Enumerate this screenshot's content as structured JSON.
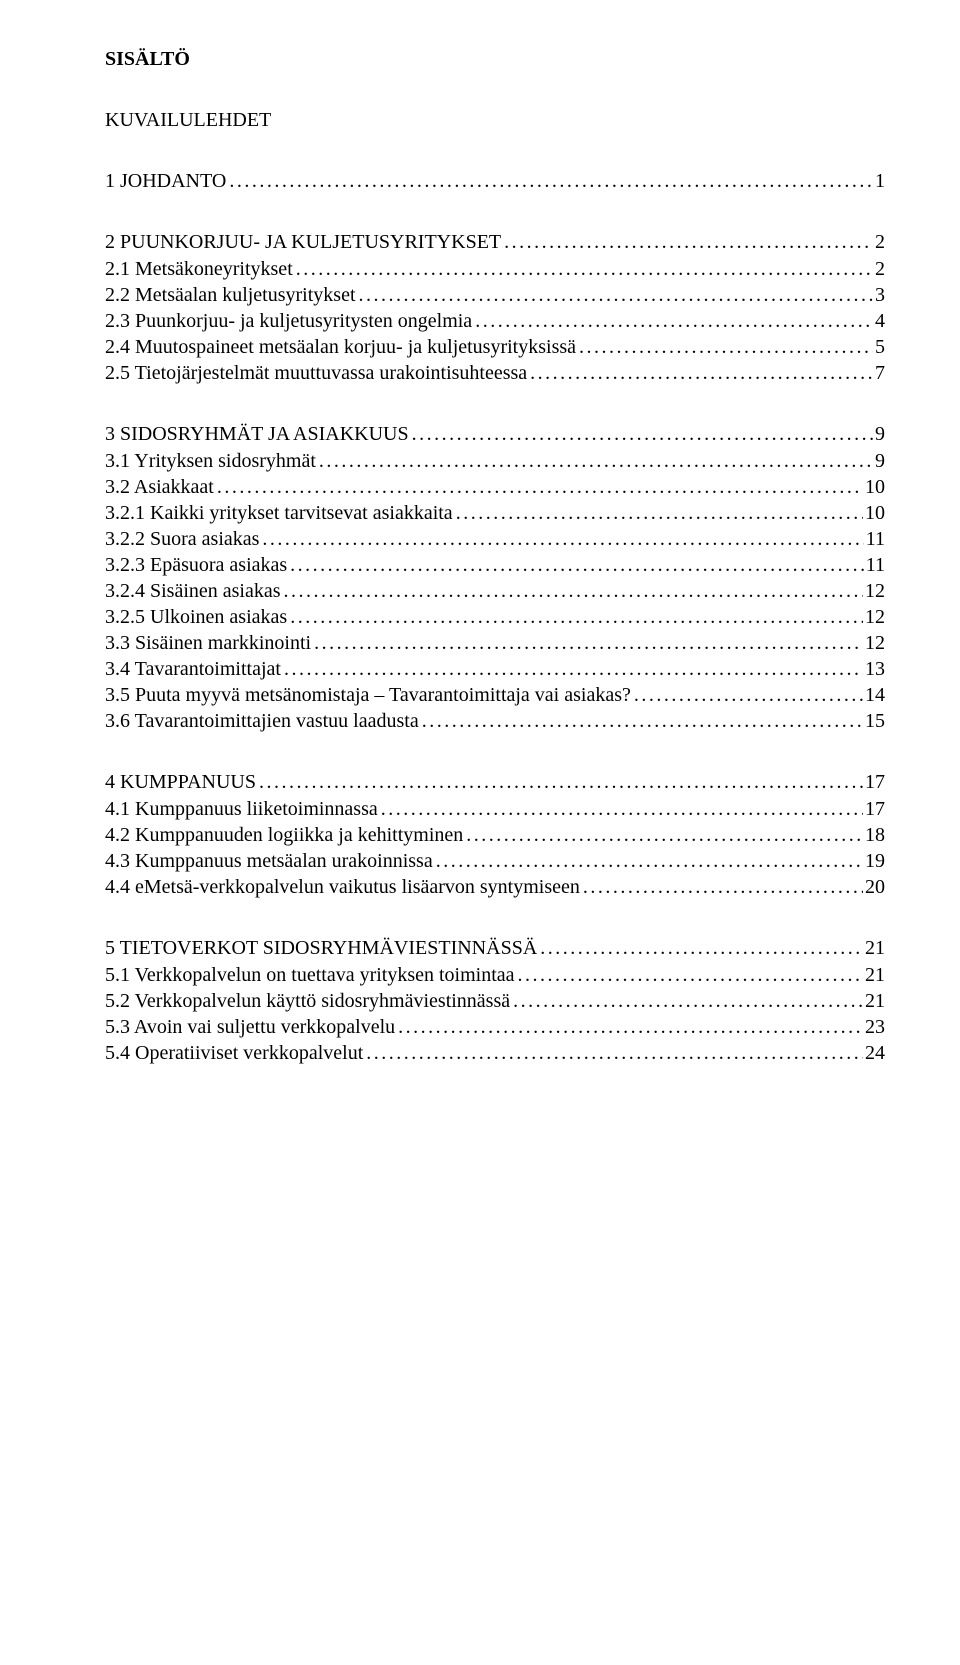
{
  "title": "SISÄLTÖ",
  "section_heading": "KUVAILULEHDET",
  "blocks": [
    {
      "heading": {
        "label": "1 JOHDANTO",
        "page": "1"
      },
      "rows": []
    },
    {
      "heading": {
        "label": "2 PUUNKORJUU- JA KULJETUSYRITYKSET",
        "page": "2"
      },
      "rows": [
        {
          "label": "2.1 Metsäkoneyritykset",
          "page": "2"
        },
        {
          "label": "2.2 Metsäalan kuljetusyritykset",
          "page": "3"
        },
        {
          "label": "2.3 Puunkorjuu- ja kuljetusyritysten ongelmia",
          "page": "4"
        },
        {
          "label": "2.4 Muutospaineet metsäalan korjuu- ja kuljetusyrityksissä",
          "page": "5"
        },
        {
          "label": "2.5 Tietojärjestelmät muuttuvassa urakointisuhteessa",
          "page": "7"
        }
      ]
    },
    {
      "heading": {
        "label": "3 SIDOSRYHMÄT JA ASIAKKUUS",
        "page": "9"
      },
      "rows": [
        {
          "label": "3.1 Yrityksen sidosryhmät",
          "page": "9"
        },
        {
          "label": "3.2 Asiakkaat",
          "page": "10"
        },
        {
          "label": "3.2.1 Kaikki yritykset tarvitsevat asiakkaita",
          "page": "10"
        },
        {
          "label": "3.2.2 Suora asiakas",
          "page": "11"
        },
        {
          "label": "3.2.3 Epäsuora asiakas",
          "page": "11"
        },
        {
          "label": "3.2.4 Sisäinen asiakas",
          "page": "12"
        },
        {
          "label": "3.2.5 Ulkoinen asiakas",
          "page": "12"
        },
        {
          "label": "3.3 Sisäinen markkinointi",
          "page": "12"
        },
        {
          "label": "3.4 Tavarantoimittajat",
          "page": "13"
        },
        {
          "label": "3.5 Puuta myyvä metsänomistaja – Tavarantoimittaja vai asiakas?",
          "page": "14"
        },
        {
          "label": "3.6 Tavarantoimittajien vastuu laadusta",
          "page": "15"
        }
      ]
    },
    {
      "heading": {
        "label": "4 KUMPPANUUS",
        "page": "17"
      },
      "rows": [
        {
          "label": "4.1 Kumppanuus liiketoiminnassa",
          "page": "17"
        },
        {
          "label": "4.2 Kumppanuuden logiikka ja kehittyminen",
          "page": "18"
        },
        {
          "label": "4.3 Kumppanuus metsäalan urakoinnissa",
          "page": "19"
        },
        {
          "label": "4.4 eMetsä-verkkopalvelun vaikutus lisäarvon syntymiseen",
          "page": "20"
        }
      ]
    },
    {
      "heading": {
        "label": "5 TIETOVERKOT SIDOSRYHMÄVIESTINNÄSSÄ",
        "page": "21"
      },
      "rows": [
        {
          "label": "5.1 Verkkopalvelun on tuettava yrityksen toimintaa",
          "page": "21"
        },
        {
          "label": "5.2 Verkkopalvelun käyttö sidosryhmäviestinnässä",
          "page": "21"
        },
        {
          "label": "5.3 Avoin vai suljettu verkkopalvelu",
          "page": "23"
        },
        {
          "label": "5.4 Operatiiviset verkkopalvelut",
          "page": "24"
        }
      ]
    }
  ]
}
